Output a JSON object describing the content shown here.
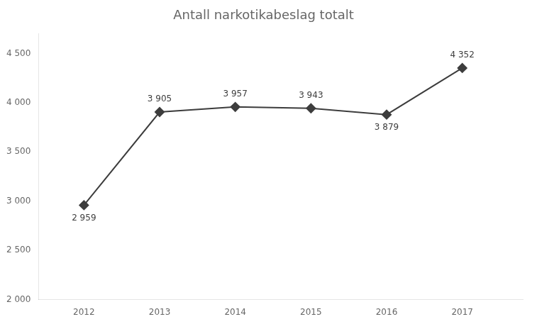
{
  "chart_data": {
    "type": "line",
    "title": "Antall narkotikabeslag totalt",
    "x": [
      2012,
      2013,
      2014,
      2015,
      2016,
      2017
    ],
    "values": [
      2959,
      3905,
      3957,
      3943,
      3879,
      4352
    ],
    "value_labels": [
      "2 959",
      "3 905",
      "3 957",
      "3 943",
      "3 879",
      "4 352"
    ],
    "data_labels": true,
    "color": "#3d3d3d",
    "marker": "diamond",
    "xlim": [
      2011.4,
      2017.8
    ],
    "xticks": [
      2012,
      2013,
      2014,
      2015,
      2016,
      2017
    ],
    "ylim": [
      2000,
      4700
    ],
    "yticks": [
      {
        "value": 2000,
        "label": "2 000"
      },
      {
        "value": 2500,
        "label": "2 500"
      },
      {
        "value": 3000,
        "label": "3 000"
      },
      {
        "value": 3500,
        "label": "3 500"
      },
      {
        "value": 4000,
        "label": "4 000"
      },
      {
        "value": 4500,
        "label": "4 500"
      }
    ],
    "grid": false
  }
}
